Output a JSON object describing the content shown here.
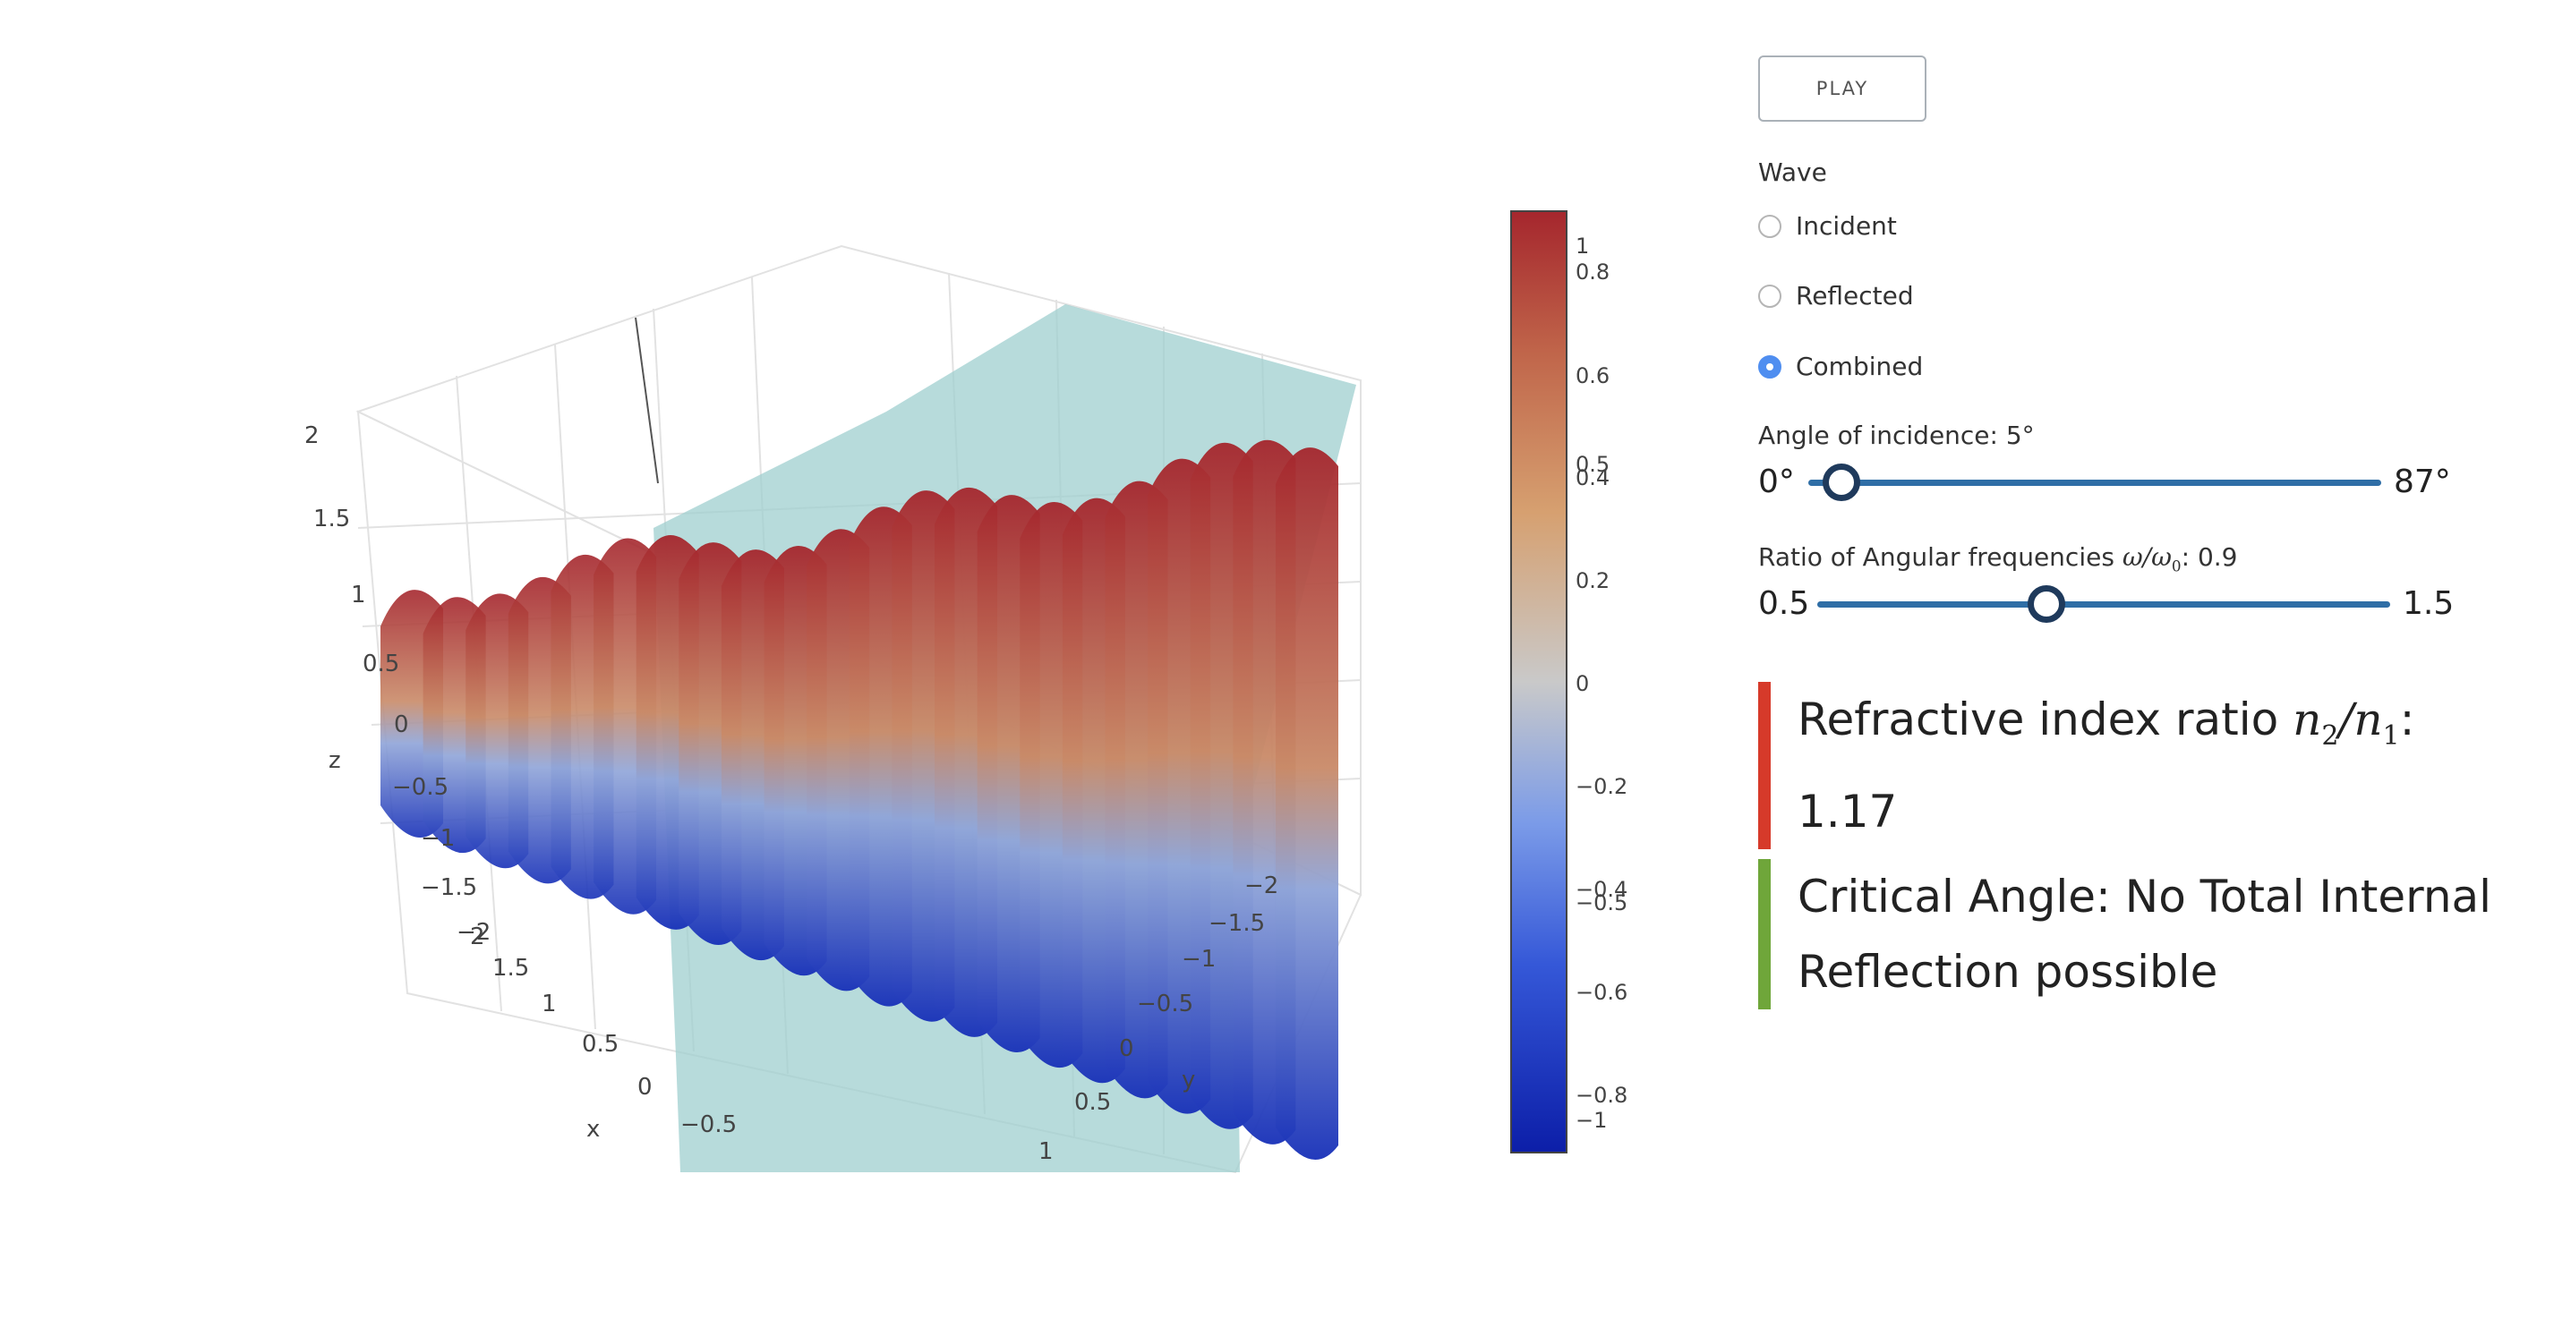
{
  "plot": {
    "axes": {
      "x": {
        "label": "x",
        "ticks": [
          "2",
          "1.5",
          "1",
          "0.5",
          "0",
          "−0.5"
        ]
      },
      "y": {
        "label": "y",
        "ticks": [
          "−2",
          "−1.5",
          "−1",
          "−0.5",
          "0",
          "0.5",
          "1"
        ]
      },
      "z": {
        "label": "z",
        "ticks": [
          "2",
          "1.5",
          "1",
          "0.5",
          "0",
          "−0.5",
          "−1",
          "−1.5",
          "−2"
        ]
      }
    },
    "colorbar": {
      "ticks": [
        "1",
        "0.8",
        "0.6",
        "0.5",
        "0.4",
        "0.2",
        "0",
        "−0.2",
        "−0.4",
        "−0.5",
        "−0.6",
        "−0.8",
        "−1"
      ],
      "colors": [
        "#0c1ea8",
        "#3558d8",
        "#7b9be8",
        "#c9c9c9",
        "#d6a070",
        "#c0654a",
        "#a5262d"
      ]
    },
    "surface_colors": {
      "high": "#a5262d",
      "mid": "#c9b7a0",
      "low": "#1730b8"
    },
    "interface_plane_color": "#9fcfcf"
  },
  "controls": {
    "play_label": "PLAY",
    "wave_label": "Wave",
    "wave_options": [
      "Incident",
      "Reflected",
      "Combined"
    ],
    "wave_selected": "Combined",
    "angle": {
      "label": "Angle of incidence: 5°",
      "min_label": "0°",
      "max_label": "87°",
      "min": 0,
      "max": 87,
      "value": 5
    },
    "ratio": {
      "label_prefix": "Ratio of Angular frequencies",
      "omega": "ω/ω",
      "omega_sub": "0",
      "value_text": ": 0.9",
      "min_label": "0.5",
      "max_label": "1.5",
      "min": 0.5,
      "max": 1.5,
      "value": 0.9
    },
    "refractive": {
      "prefix": "Refractive index ratio ",
      "n2": "n",
      "n2_sub": "2",
      "slash": "/",
      "n1": "n",
      "n1_sub": "1",
      "colon": ":",
      "value": "1.17",
      "bar_color": "#d63a2a"
    },
    "critical": {
      "text": "Critical Angle: No Total Internal Reflection possible",
      "bar_color": "#6fa63a"
    }
  }
}
